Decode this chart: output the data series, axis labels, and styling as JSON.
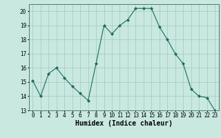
{
  "x": [
    0,
    1,
    2,
    3,
    4,
    5,
    6,
    7,
    8,
    9,
    10,
    11,
    12,
    13,
    14,
    15,
    16,
    17,
    18,
    19,
    20,
    21,
    22,
    23
  ],
  "y": [
    15.1,
    14.0,
    15.6,
    16.0,
    15.3,
    14.7,
    14.2,
    13.7,
    16.3,
    19.0,
    18.4,
    19.0,
    19.4,
    20.2,
    20.2,
    20.2,
    18.9,
    18.0,
    17.0,
    16.3,
    14.5,
    14.0,
    13.9,
    13.0
  ],
  "line_color": "#1a6b5a",
  "marker_color": "#1a6b5a",
  "bg_color": "#c8e8e0",
  "grid_color": "#a0c8c0",
  "xlabel": "Humidex (Indice chaleur)",
  "xlim": [
    -0.5,
    23.5
  ],
  "ylim": [
    13,
    20.5
  ],
  "yticks": [
    13,
    14,
    15,
    16,
    17,
    18,
    19,
    20
  ],
  "xticks": [
    0,
    1,
    2,
    3,
    4,
    5,
    6,
    7,
    8,
    9,
    10,
    11,
    12,
    13,
    14,
    15,
    16,
    17,
    18,
    19,
    20,
    21,
    22,
    23
  ],
  "xlabel_fontsize": 7,
  "tick_fontsize": 5.5
}
